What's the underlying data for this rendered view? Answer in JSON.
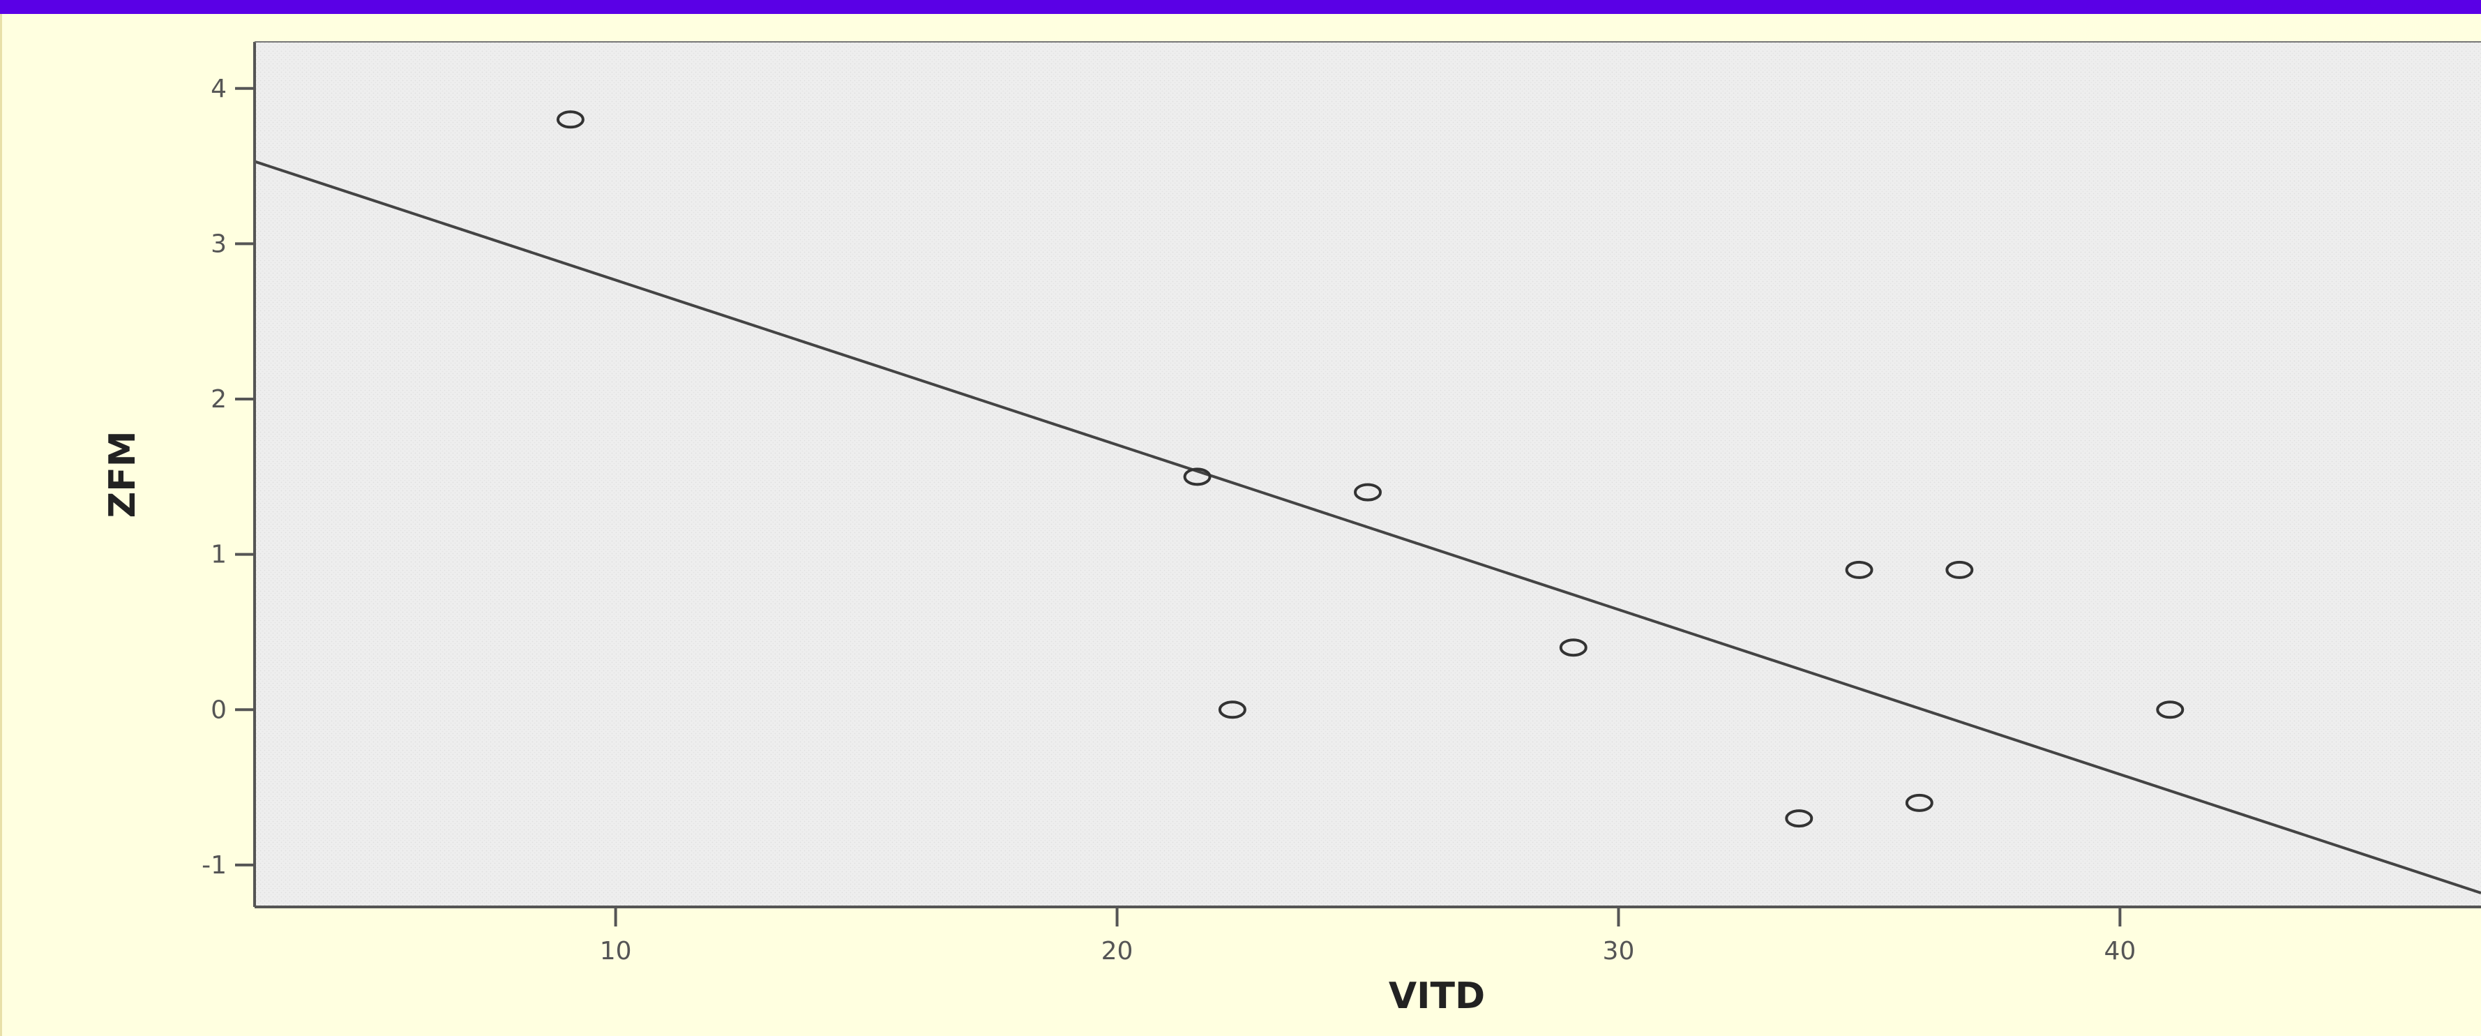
{
  "chart_data": {
    "type": "scatter",
    "xlabel": "VITD",
    "ylabel": "ZFM",
    "xlim": [
      2.8,
      47.2
    ],
    "ylim": [
      -1.27,
      4.3
    ],
    "xticks": [
      10,
      20,
      30,
      40
    ],
    "yticks": [
      -1,
      0,
      1,
      2,
      3,
      4
    ],
    "xtick_labels": [
      "10",
      "20",
      "30",
      "40"
    ],
    "ytick_labels": [
      "-1",
      "0",
      "1",
      "2",
      "3",
      "4"
    ],
    "points": [
      {
        "x": 9.1,
        "y": 3.8
      },
      {
        "x": 21.6,
        "y": 1.5
      },
      {
        "x": 22.3,
        "y": 0.0
      },
      {
        "x": 25.0,
        "y": 1.4
      },
      {
        "x": 29.1,
        "y": 0.4
      },
      {
        "x": 33.6,
        "y": -0.7
      },
      {
        "x": 34.8,
        "y": 0.9
      },
      {
        "x": 36.0,
        "y": -0.6
      },
      {
        "x": 36.8,
        "y": 0.9
      },
      {
        "x": 41.0,
        "y": 0.0
      }
    ],
    "fit_line": {
      "x": [
        2.8,
        47.2
      ],
      "y": [
        3.53,
        -1.18
      ]
    },
    "grid": false,
    "legend": "none",
    "colors": {
      "plot_background": "#eeeeee",
      "marker": "#333333",
      "fit_line": "#444444",
      "frame": "#555555",
      "panel_background": "#ffffe0",
      "top_bar": "#5a00e6"
    }
  }
}
